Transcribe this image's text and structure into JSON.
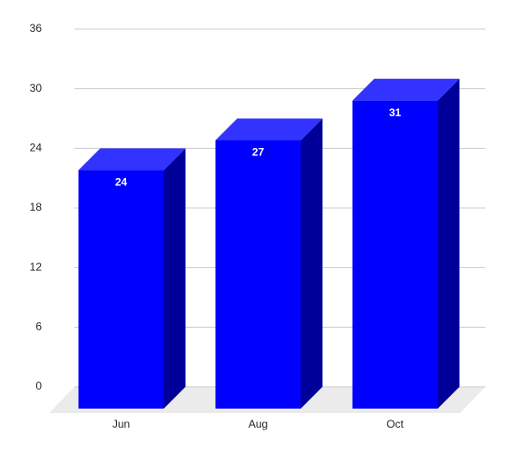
{
  "chart_data": {
    "type": "bar3d",
    "categories": [
      "Jun",
      "Aug",
      "Oct"
    ],
    "values": [
      24,
      27,
      31
    ],
    "color": "#0000ff",
    "ylim": [
      0,
      36
    ],
    "yticks": [
      0,
      6,
      12,
      18,
      24,
      30,
      36
    ],
    "grid": true
  }
}
